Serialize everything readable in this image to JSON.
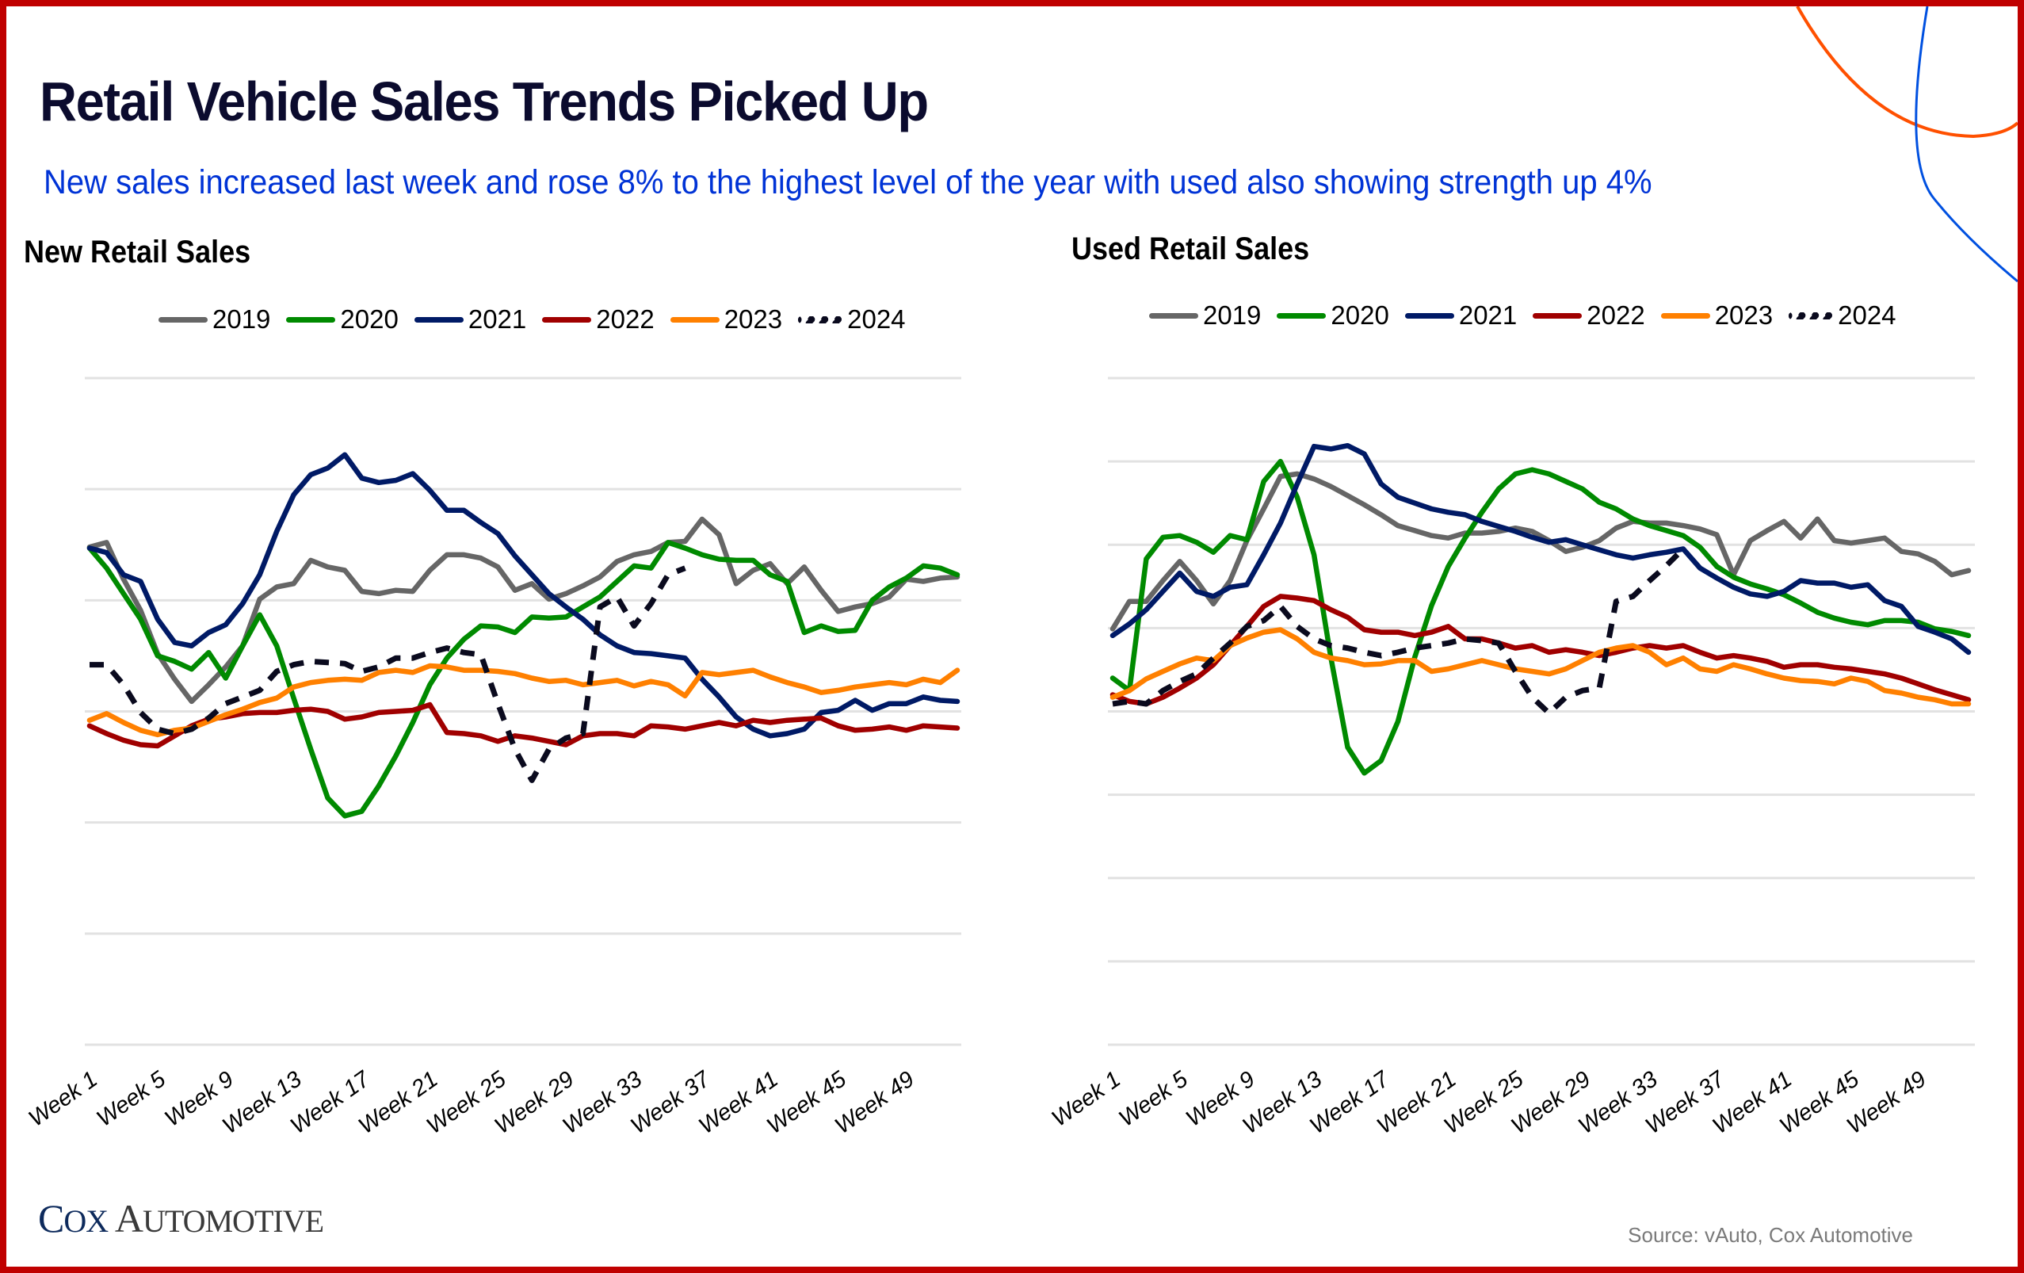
{
  "header": {
    "title": "Retail Vehicle Sales Trends Picked Up",
    "subtitle": "New sales increased last week and rose 8% to the highest level of the year with used also showing strength up 4%"
  },
  "colors": {
    "frame": "#c00000",
    "title": "#0b0b2e",
    "subtitle": "#0033d6",
    "deco_orange": "#ff5000",
    "deco_blue": "#0050e0"
  },
  "series_styles": [
    {
      "name": "2019",
      "color": "#666666",
      "dashed": false
    },
    {
      "name": "2020",
      "color": "#008a00",
      "dashed": false
    },
    {
      "name": "2021",
      "color": "#001a66",
      "dashed": false
    },
    {
      "name": "2022",
      "color": "#a00000",
      "dashed": false
    },
    {
      "name": "2023",
      "color": "#ff8000",
      "dashed": false
    },
    {
      "name": "2024",
      "color": "#0a0a1e",
      "dashed": true
    }
  ],
  "chart_data": [
    {
      "type": "line",
      "title": "New Retail Sales",
      "xlabel": "",
      "ylabel": "",
      "y_tick_labels_shown": false,
      "ylim": [
        0,
        6
      ],
      "grid": true,
      "legend": "top-right",
      "x_tick_labels": [
        "Week 1",
        "Week 5",
        "Week 9",
        "Week 13",
        "Week 17",
        "Week 21",
        "Week 25",
        "Week 29",
        "Week 33",
        "Week 37",
        "Week 41",
        "Week 45",
        "Week 49"
      ],
      "x_tick_weeks": [
        1,
        5,
        9,
        13,
        17,
        21,
        25,
        29,
        33,
        37,
        41,
        45,
        49
      ],
      "num_weeks": 52,
      "y_unit_note": "relative index (gridline units, axis unlabeled)",
      "series": [
        {
          "name": "2019",
          "values": [
            4.48,
            4.52,
            4.19,
            3.91,
            3.52,
            3.29,
            3.09,
            3.24,
            3.4,
            3.59,
            4.01,
            4.12,
            4.15,
            4.36,
            4.3,
            4.27,
            4.08,
            4.06,
            4.09,
            4.08,
            4.27,
            4.41,
            4.41,
            4.38,
            4.3,
            4.09,
            4.15,
            4.01,
            4.06,
            4.13,
            4.21,
            4.35,
            4.41,
            4.44,
            4.52,
            4.53,
            4.73,
            4.59,
            4.15,
            4.27,
            4.33,
            4.15,
            4.3,
            4.09,
            3.9,
            3.94,
            3.97,
            4.03,
            4.19,
            4.17,
            4.2,
            4.21
          ]
        },
        {
          "name": "2020",
          "values": [
            4.47,
            4.29,
            4.06,
            3.83,
            3.5,
            3.45,
            3.38,
            3.53,
            3.3,
            3.59,
            3.87,
            3.59,
            3.12,
            2.66,
            2.22,
            2.06,
            2.1,
            2.33,
            2.6,
            2.9,
            3.24,
            3.48,
            3.65,
            3.77,
            3.76,
            3.71,
            3.85,
            3.84,
            3.85,
            3.94,
            4.03,
            4.17,
            4.31,
            4.29,
            4.52,
            4.47,
            4.41,
            4.37,
            4.36,
            4.36,
            4.23,
            4.17,
            3.71,
            3.77,
            3.72,
            3.73,
            4.0,
            4.12,
            4.2,
            4.31,
            4.29,
            4.23
          ]
        },
        {
          "name": "2021",
          "values": [
            4.47,
            4.43,
            4.23,
            4.17,
            3.83,
            3.62,
            3.59,
            3.71,
            3.78,
            3.97,
            4.23,
            4.62,
            4.95,
            5.13,
            5.19,
            5.31,
            5.1,
            5.06,
            5.08,
            5.14,
            4.99,
            4.81,
            4.81,
            4.7,
            4.6,
            4.4,
            4.23,
            4.06,
            3.94,
            3.83,
            3.69,
            3.59,
            3.53,
            3.52,
            3.5,
            3.48,
            3.29,
            3.13,
            2.95,
            2.84,
            2.78,
            2.8,
            2.84,
            2.99,
            3.01,
            3.1,
            3.01,
            3.07,
            3.07,
            3.13,
            3.1,
            3.09
          ]
        },
        {
          "name": "2022",
          "values": [
            2.87,
            2.8,
            2.74,
            2.7,
            2.69,
            2.78,
            2.87,
            2.93,
            2.95,
            2.98,
            2.99,
            2.99,
            3.01,
            3.02,
            3.0,
            2.93,
            2.95,
            2.99,
            3.0,
            3.01,
            3.06,
            2.81,
            2.8,
            2.78,
            2.73,
            2.78,
            2.76,
            2.73,
            2.7,
            2.78,
            2.8,
            2.8,
            2.78,
            2.87,
            2.86,
            2.84,
            2.87,
            2.9,
            2.87,
            2.92,
            2.9,
            2.92,
            2.93,
            2.94,
            2.87,
            2.83,
            2.84,
            2.86,
            2.83,
            2.87,
            2.86,
            2.85
          ]
        },
        {
          "name": "2023",
          "values": [
            2.92,
            2.98,
            2.9,
            2.83,
            2.79,
            2.83,
            2.85,
            2.91,
            2.97,
            3.02,
            3.08,
            3.12,
            3.22,
            3.26,
            3.28,
            3.29,
            3.28,
            3.35,
            3.37,
            3.35,
            3.41,
            3.4,
            3.37,
            3.37,
            3.36,
            3.34,
            3.3,
            3.27,
            3.28,
            3.24,
            3.26,
            3.28,
            3.23,
            3.27,
            3.24,
            3.14,
            3.35,
            3.33,
            3.35,
            3.37,
            3.31,
            3.26,
            3.22,
            3.17,
            3.19,
            3.22,
            3.24,
            3.26,
            3.24,
            3.29,
            3.26,
            3.37
          ]
        },
        {
          "name": "2024",
          "values": [
            3.42,
            3.42,
            3.24,
            2.99,
            2.84,
            2.8,
            2.84,
            2.94,
            3.07,
            3.13,
            3.19,
            3.36,
            3.42,
            3.45,
            3.44,
            3.43,
            3.36,
            3.4,
            3.48,
            3.48,
            3.53,
            3.57,
            3.53,
            3.51,
            3.07,
            2.66,
            2.38,
            2.66,
            2.76,
            2.8,
            3.94,
            4.03,
            3.77,
            3.97,
            4.23,
            4.29
          ]
        }
      ]
    },
    {
      "type": "line",
      "title": "Used Retail Sales",
      "xlabel": "",
      "ylabel": "",
      "y_tick_labels_shown": false,
      "ylim": [
        0,
        8
      ],
      "grid": true,
      "legend": "top-right",
      "x_tick_labels": [
        "Week 1",
        "Week 5",
        "Week 9",
        "Week 13",
        "Week 17",
        "Week 21",
        "Week 25",
        "Week 29",
        "Week 33",
        "Week 37",
        "Week 41",
        "Week 45",
        "Week 49"
      ],
      "x_tick_weeks": [
        1,
        5,
        9,
        13,
        17,
        21,
        25,
        29,
        33,
        37,
        41,
        45,
        49
      ],
      "num_weeks": 52,
      "y_unit_note": "relative index (gridline units, axis unlabeled)",
      "series": [
        {
          "name": "2019",
          "values": [
            4.99,
            5.32,
            5.32,
            5.57,
            5.8,
            5.57,
            5.29,
            5.57,
            6.05,
            6.43,
            6.82,
            6.85,
            6.79,
            6.7,
            6.59,
            6.48,
            6.36,
            6.23,
            6.17,
            6.11,
            6.08,
            6.14,
            6.14,
            6.16,
            6.2,
            6.16,
            6.05,
            5.92,
            5.97,
            6.05,
            6.2,
            6.28,
            6.26,
            6.26,
            6.23,
            6.19,
            6.12,
            5.64,
            6.05,
            6.17,
            6.28,
            6.08,
            6.31,
            6.05,
            6.02,
            6.05,
            6.08,
            5.92,
            5.89,
            5.8,
            5.64,
            5.69
          ]
        },
        {
          "name": "2020",
          "values": [
            4.4,
            4.25,
            5.83,
            6.09,
            6.11,
            6.03,
            5.91,
            6.11,
            6.06,
            6.76,
            7.0,
            6.57,
            5.88,
            4.65,
            3.57,
            3.26,
            3.41,
            3.88,
            4.65,
            5.27,
            5.74,
            6.08,
            6.39,
            6.67,
            6.85,
            6.9,
            6.85,
            6.76,
            6.67,
            6.51,
            6.43,
            6.31,
            6.23,
            6.17,
            6.11,
            5.97,
            5.74,
            5.61,
            5.53,
            5.47,
            5.4,
            5.3,
            5.19,
            5.12,
            5.07,
            5.04,
            5.09,
            5.09,
            5.07,
            4.99,
            4.96,
            4.91
          ]
        },
        {
          "name": "2021",
          "values": [
            4.91,
            5.05,
            5.22,
            5.44,
            5.66,
            5.44,
            5.38,
            5.49,
            5.52,
            5.88,
            6.26,
            6.73,
            7.18,
            7.15,
            7.19,
            7.09,
            6.73,
            6.57,
            6.5,
            6.43,
            6.39,
            6.36,
            6.28,
            6.22,
            6.16,
            6.09,
            6.03,
            6.06,
            6.0,
            5.94,
            5.88,
            5.84,
            5.88,
            5.91,
            5.95,
            5.72,
            5.6,
            5.49,
            5.41,
            5.38,
            5.44,
            5.57,
            5.54,
            5.54,
            5.49,
            5.52,
            5.33,
            5.26,
            5.02,
            4.95,
            4.87,
            4.71
          ]
        },
        {
          "name": "2022",
          "values": [
            4.2,
            4.12,
            4.09,
            4.17,
            4.28,
            4.4,
            4.56,
            4.79,
            5.02,
            5.26,
            5.38,
            5.36,
            5.33,
            5.22,
            5.13,
            4.98,
            4.95,
            4.95,
            4.91,
            4.95,
            5.02,
            4.87,
            4.87,
            4.82,
            4.76,
            4.79,
            4.71,
            4.74,
            4.71,
            4.67,
            4.71,
            4.76,
            4.79,
            4.76,
            4.79,
            4.71,
            4.64,
            4.67,
            4.64,
            4.6,
            4.53,
            4.56,
            4.56,
            4.53,
            4.51,
            4.48,
            4.45,
            4.4,
            4.33,
            4.26,
            4.2,
            4.14
          ]
        },
        {
          "name": "2023",
          "values": [
            4.17,
            4.25,
            4.39,
            4.48,
            4.57,
            4.64,
            4.61,
            4.79,
            4.88,
            4.95,
            4.98,
            4.87,
            4.71,
            4.64,
            4.61,
            4.56,
            4.57,
            4.61,
            4.61,
            4.48,
            4.51,
            4.56,
            4.61,
            4.56,
            4.51,
            4.48,
            4.45,
            4.51,
            4.61,
            4.71,
            4.76,
            4.79,
            4.71,
            4.56,
            4.64,
            4.51,
            4.48,
            4.56,
            4.51,
            4.45,
            4.4,
            4.37,
            4.36,
            4.33,
            4.4,
            4.36,
            4.25,
            4.22,
            4.17,
            4.14,
            4.09,
            4.09
          ]
        },
        {
          "name": "2024",
          "values": [
            4.09,
            4.12,
            4.09,
            4.25,
            4.36,
            4.45,
            4.64,
            4.82,
            5.02,
            5.09,
            5.26,
            5.02,
            4.87,
            4.79,
            4.76,
            4.71,
            4.67,
            4.71,
            4.76,
            4.79,
            4.82,
            4.87,
            4.85,
            4.82,
            4.48,
            4.17,
            3.98,
            4.17,
            4.25,
            4.28,
            5.32,
            5.38,
            5.57,
            5.75,
            5.95
          ]
        }
      ]
    }
  ],
  "footer": {
    "logo_first_initial": "C",
    "logo_first_rest": "OX",
    "logo_second_initial": "A",
    "logo_second_rest": "UTOMOTIVE",
    "source": "Source: vAuto, Cox Automotive"
  }
}
